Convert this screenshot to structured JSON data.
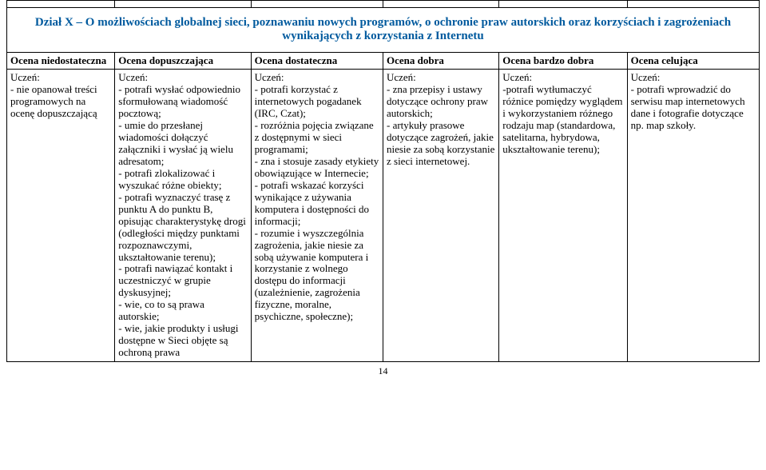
{
  "section_title": "Dział X – O możliwościach globalnej sieci, poznawaniu nowych programów, o ochronie praw autorskich oraz korzyściach i zagrożeniach wynikających z korzystania z Internetu",
  "headers": {
    "c1": "Ocena niedostateczna",
    "c2": "Ocena dopuszczająca",
    "c3": "Ocena dostateczna",
    "c4": "Ocena dobra",
    "c5": "Ocena bardzo dobra",
    "c6": "Ocena celująca"
  },
  "uczen": "Uczeń:",
  "cells": {
    "c1": "- nie opanował treści programowych na ocenę dopuszczającą",
    "c2": "- potrafi wysłać odpowiednio sformułowaną wiadomość pocztową;\n- umie do przesłanej wiadomości dołączyć załączniki i wysłać ją wielu adresatom;\n- potrafi zlokalizować i wyszukać różne obiekty;\n- potrafi wyznaczyć trasę z punktu A do punktu B, opisując charakterystykę drogi (odległości między punktami rozpoznawczymi, ukształtowanie terenu);\n- potrafi nawiązać kontakt i uczestniczyć w grupie dyskusyjnej;\n- wie, co to są prawa autorskie;\n- wie, jakie produkty i usługi dostępne w Sieci objęte są ochroną prawa",
    "c3": "- potrafi korzystać z internetowych pogadanek (IRC, Czat);\n- rozróżnia pojęcia związane z dostępnymi w sieci programami;\n- zna i stosuje zasady etykiety obowiązujące w Internecie;\n- potrafi wskazać korzyści wynikające z używania komputera i dostępności do informacji;\n- rozumie i wyszczególnia zagrożenia, jakie niesie za sobą używanie komputera i korzystanie z wolnego dostępu do informacji (uzależnienie, zagrożenia fizyczne, moralne, psychiczne, społeczne);",
    "c4": "- zna przepisy i ustawy dotyczące ochrony praw autorskich;\n- artykuły prasowe dotyczące zagrożeń, jakie niesie za sobą korzystanie z sieci internetowej.",
    "c5": "-potrafi wytłumaczyć różnice pomiędzy wyglądem i wykorzystaniem różnego rodzaju map (standardowa, satelitarna, hybrydowa, ukształtowanie terenu);",
    "c6": "- potrafi wprowadzić do serwisu map internetowych dane i fotografie dotyczące np. map szkoły."
  },
  "page_number": "14",
  "colors": {
    "title": "#005a9e",
    "border": "#000000",
    "text": "#000000",
    "bg": "#ffffff"
  },
  "font": {
    "family": "Times New Roman",
    "body_size_pt": 10,
    "title_size_pt": 12
  }
}
